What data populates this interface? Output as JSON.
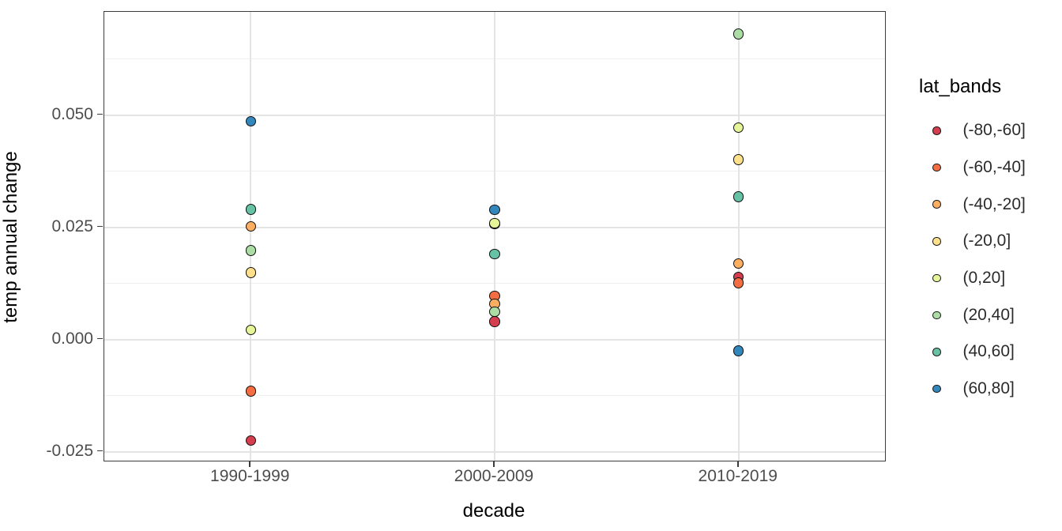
{
  "chart_data": {
    "type": "scatter",
    "title": "",
    "xlabel": "decade",
    "ylabel": "temp annual change",
    "categories": [
      "1990-1999",
      "2000-2009",
      "2010-2019"
    ],
    "y_tick_labels": [
      "0.050",
      "0.025",
      "0.000",
      "-0.025"
    ],
    "y_tick_values": [
      0.05,
      0.025,
      0.0,
      -0.025
    ],
    "y_minor_gridline_values": [
      0.0625,
      0.0375,
      0.0125,
      -0.0125
    ],
    "ylim": [
      -0.027,
      0.073
    ],
    "grid": true,
    "legend": {
      "title": "lat_bands",
      "position": "right"
    },
    "series": [
      {
        "name": "(-80,-60]",
        "color": "#d53e4f",
        "values": [
          -0.0225,
          0.004,
          0.0139
        ]
      },
      {
        "name": "(-60,-40]",
        "color": "#f46d43",
        "values": [
          -0.0115,
          0.0097,
          0.0126
        ]
      },
      {
        "name": "(-40,-20]",
        "color": "#fdae61",
        "values": [
          0.0252,
          0.0079,
          0.0169
        ]
      },
      {
        "name": "(-20,0]",
        "color": "#fee08b",
        "values": [
          0.0149,
          0.0257,
          0.0401
        ]
      },
      {
        "name": "(0,20]",
        "color": "#e6f598",
        "values": [
          0.0021,
          0.0259,
          0.0472
        ]
      },
      {
        "name": "(20,40]",
        "color": "#abdda4",
        "values": [
          0.0198,
          0.0062,
          0.0681
        ]
      },
      {
        "name": "(40,60]",
        "color": "#66c2a5",
        "values": [
          0.029,
          0.019,
          0.0318
        ]
      },
      {
        "name": "(60,80]",
        "color": "#3288bd",
        "values": [
          0.0486,
          0.0289,
          -0.0025
        ]
      }
    ]
  },
  "colors": {
    "background": "#ffffff",
    "panel_border": "#3c3c3c",
    "grid_major": "#e4e4e4",
    "grid_minor": "#efefef",
    "axis_text": "#4d4d4d",
    "title_text": "#000000",
    "point_stroke": "#111111"
  }
}
